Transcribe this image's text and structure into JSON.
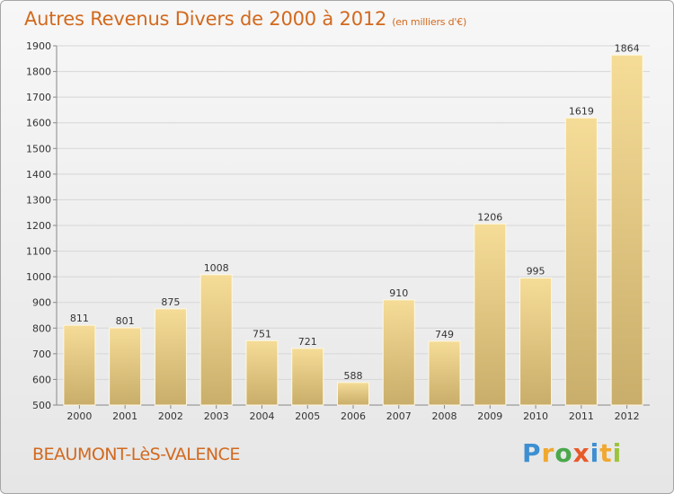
{
  "chart_data": {
    "type": "bar",
    "title": "Autres Revenus Divers de 2000 à 2012",
    "subtitle": "(en milliers d'€)",
    "categories": [
      "2000",
      "2001",
      "2002",
      "2003",
      "2004",
      "2005",
      "2006",
      "2007",
      "2008",
      "2009",
      "2010",
      "2011",
      "2012"
    ],
    "values": [
      811,
      801,
      875,
      1008,
      751,
      721,
      588,
      910,
      749,
      1206,
      995,
      1619,
      1864
    ],
    "ylim": [
      500,
      1900
    ],
    "yticks": [
      500,
      600,
      700,
      800,
      900,
      1000,
      1100,
      1200,
      1300,
      1400,
      1500,
      1600,
      1700,
      1800,
      1900
    ],
    "grid": true,
    "bar_color_light": "#f5dc97",
    "bar_color_dark": "#c9ad6a"
  },
  "footer": {
    "town": "BEAUMONT-LèS-VALENCE",
    "brand_letters": [
      "P",
      "r",
      "o",
      "x",
      "i",
      "t",
      "i"
    ],
    "brand_colors": [
      "#3d8fd1",
      "#f0a830",
      "#4aa84a",
      "#e8592a",
      "#3d8fd1",
      "#f0a830",
      "#9bc43c"
    ]
  }
}
